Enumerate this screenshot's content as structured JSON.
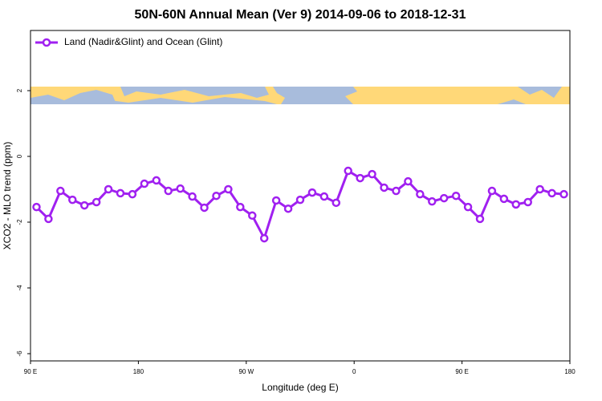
{
  "chart_data": {
    "type": "line",
    "title": "50N-60N Annual Mean (Ver 9)   2014-09-06 to 2018-12-31",
    "x_label": "Longitude (deg E)",
    "y_label": "XCO2 - MLO trend (ppm)",
    "x": [
      95,
      105,
      115,
      125,
      135,
      145,
      155,
      165,
      175,
      185,
      195,
      205,
      215,
      225,
      235,
      245,
      255,
      265,
      275,
      285,
      295,
      305,
      315,
      325,
      335,
      345,
      355,
      365,
      375,
      385,
      395,
      405,
      415,
      425,
      435,
      445,
      455,
      465,
      475,
      485,
      495,
      505,
      515,
      525,
      535
    ],
    "series": [
      {
        "name": "Land (Nadir&Glint) and Ocean (Glint)",
        "color": "#a020f0",
        "values": [
          -1.54,
          -1.9,
          -1.05,
          -1.32,
          -1.49,
          -1.39,
          -1.0,
          -1.12,
          -1.15,
          -0.83,
          -0.73,
          -1.05,
          -0.98,
          -1.22,
          -1.56,
          -1.2,
          -1.0,
          -1.54,
          -1.8,
          -2.49,
          -1.34,
          -1.59,
          -1.32,
          -1.1,
          -1.22,
          -1.41,
          -0.44,
          -0.66,
          -0.54,
          -0.95,
          -1.05,
          -0.76,
          -1.15,
          -1.37,
          -1.27,
          -1.2,
          -1.54,
          -1.9,
          -1.05,
          -1.29,
          -1.46,
          -1.39,
          -1.0,
          -1.12,
          -1.15
        ]
      }
    ],
    "xlim": [
      90,
      540
    ],
    "xticks": [
      {
        "value": 90,
        "label": "90 E"
      },
      180,
      {
        "value": 270,
        "label": "90 W"
      },
      {
        "value": 360,
        "label": "0"
      },
      {
        "value": 450,
        "label": "90 E"
      },
      {
        "value": 540,
        "label": "180"
      }
    ],
    "ylim": [
      -6.22,
      3.83
    ],
    "yticks": [
      -6,
      -4,
      -2,
      0,
      2
    ],
    "grid": false,
    "legend_position": "top-left"
  }
}
